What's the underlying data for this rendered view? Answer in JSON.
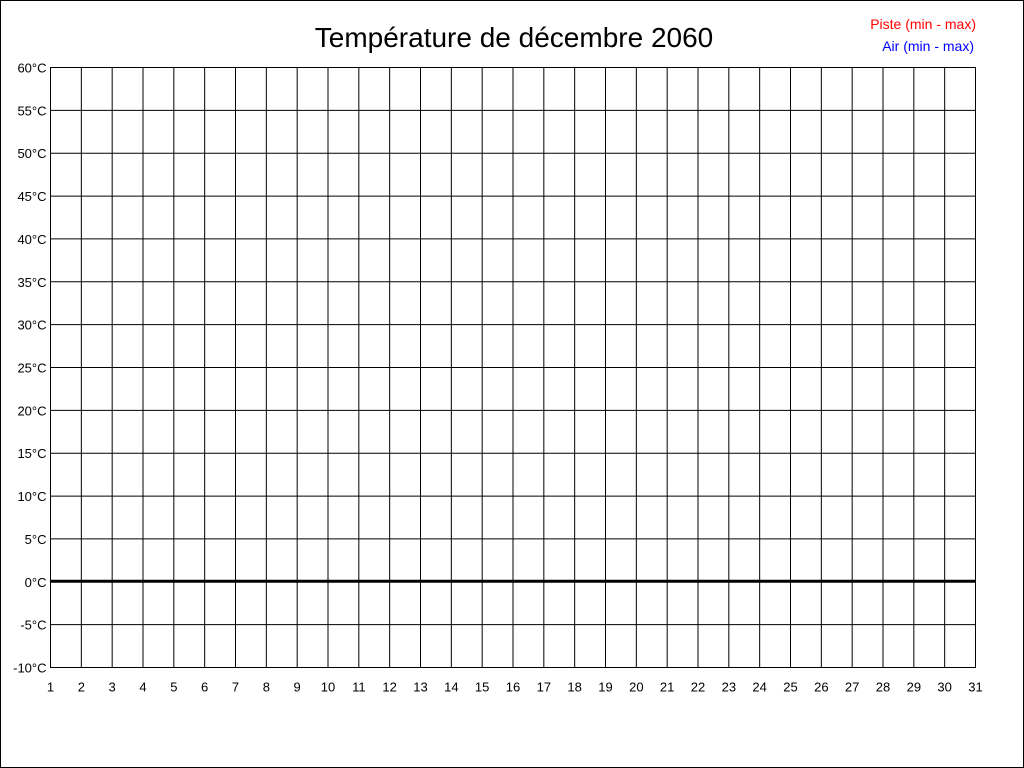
{
  "chart_data": {
    "type": "line",
    "title": "Température de décembre 2060",
    "xlabel": "",
    "ylabel": "",
    "x_ticks": [
      "1",
      "2",
      "3",
      "4",
      "5",
      "6",
      "7",
      "8",
      "9",
      "10",
      "11",
      "12",
      "13",
      "14",
      "15",
      "16",
      "17",
      "18",
      "19",
      "20",
      "21",
      "22",
      "23",
      "24",
      "25",
      "26",
      "27",
      "28",
      "29",
      "30",
      "31"
    ],
    "y_ticks": [
      "60°C",
      "55°C",
      "50°C",
      "45°C",
      "40°C",
      "35°C",
      "30°C",
      "25°C",
      "20°C",
      "15°C",
      "10°C",
      "5°C",
      "0°C",
      "-5°C",
      "-10°C"
    ],
    "xlim": [
      1,
      31
    ],
    "ylim": [
      -10,
      60
    ],
    "y_step": 5,
    "grid": true,
    "zero_line": true,
    "legend_position": "top-right",
    "series": [
      {
        "name": "Piste (min - max)",
        "color": "#ff0000",
        "values": []
      },
      {
        "name": "Air (min - max)",
        "color": "#0000ff",
        "values": []
      }
    ]
  }
}
